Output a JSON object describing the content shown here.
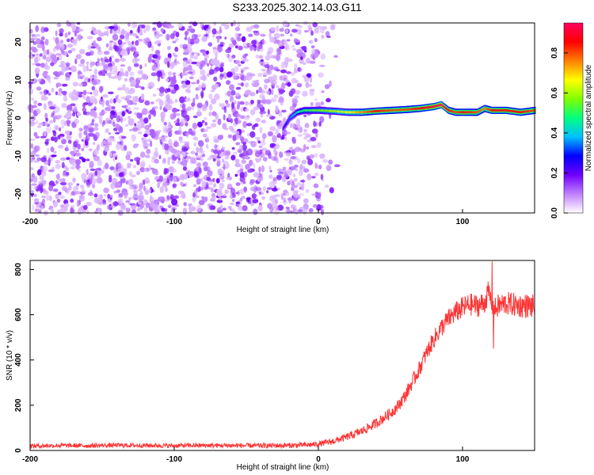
{
  "title": "S233.2025.302.14.03.G11",
  "chart_data": [
    {
      "type": "heatmap",
      "name": "spectrogram",
      "xlabel": "Height of straight line (km)",
      "ylabel": "Frequency (Hz)",
      "xlim": [
        -200,
        150
      ],
      "ylim": [
        -25,
        25
      ],
      "xticks": [
        "-200",
        "-100",
        "0",
        "100"
      ],
      "xtick_values": [
        -200,
        -100,
        0,
        100
      ],
      "yticks": [
        "-20",
        "-10",
        "0",
        "10",
        "20"
      ],
      "ytick_values": [
        -20,
        -10,
        0,
        10,
        20
      ],
      "colorbar": {
        "label": "Normalized spectral amplitude",
        "range": [
          0,
          0.95
        ],
        "ticks": [
          "0.0",
          "0.2",
          "0.4",
          "0.6",
          "0.8"
        ],
        "tick_values": [
          0,
          0.2,
          0.4,
          0.6,
          0.8
        ],
        "colors": [
          "#ffffff",
          "#c080ff",
          "#7000ff",
          "#0000ff",
          "#00c0ff",
          "#00ff80",
          "#80ff00",
          "#ffff00",
          "#ff8000",
          "#ff0000",
          "#ff0060"
        ]
      },
      "noise_region_x": [
        -200,
        -15
      ],
      "noise_amplitude": [
        0.05,
        0.2
      ],
      "signal_track": {
        "x": [
          -25,
          -20,
          -15,
          -10,
          0,
          10,
          20,
          30,
          40,
          50,
          60,
          70,
          80,
          85,
          90,
          95,
          100,
          110,
          115,
          120,
          130,
          140,
          150
        ],
        "frequency_hz": [
          -3,
          0,
          1.5,
          2,
          2,
          1.8,
          1.5,
          1.5,
          1.8,
          2,
          2.2,
          2.5,
          3,
          3.5,
          2,
          1.5,
          1.5,
          1.5,
          2.5,
          2,
          2,
          1.5,
          2
        ],
        "amplitude": [
          0.25,
          0.35,
          0.45,
          0.5,
          0.55,
          0.6,
          0.65,
          0.75,
          0.85,
          0.8,
          0.8,
          0.85,
          0.9,
          0.95,
          0.85,
          0.8,
          0.85,
          0.8,
          0.75,
          0.85,
          0.85,
          0.85,
          0.8
        ]
      }
    },
    {
      "type": "line",
      "name": "snr",
      "xlabel": "Height of straight line (km)",
      "ylabel": "SNR (10 * v/v)",
      "xlim": [
        -200,
        150
      ],
      "ylim": [
        0,
        840
      ],
      "xticks": [
        "-200",
        "-100",
        "0",
        "100"
      ],
      "xtick_values": [
        -200,
        -100,
        0,
        100
      ],
      "yticks": [
        "0",
        "200",
        "400",
        "600",
        "800"
      ],
      "ytick_values": [
        0,
        200,
        400,
        600,
        800
      ],
      "color": "#ff0000",
      "x": [
        -200,
        -180,
        -160,
        -140,
        -120,
        -100,
        -80,
        -60,
        -40,
        -20,
        -10,
        0,
        10,
        20,
        30,
        40,
        50,
        55,
        60,
        65,
        70,
        75,
        80,
        85,
        90,
        95,
        100,
        105,
        110,
        115,
        118,
        120,
        122,
        125,
        130,
        135,
        140,
        145,
        150
      ],
      "y": [
        20,
        22,
        21,
        23,
        22,
        21,
        22,
        22,
        21,
        22,
        24,
        28,
        40,
        60,
        85,
        120,
        165,
        195,
        240,
        300,
        360,
        430,
        490,
        540,
        580,
        610,
        630,
        645,
        640,
        650,
        700,
        660,
        620,
        640,
        650,
        645,
        640,
        640,
        635
      ],
      "noise_band": {
        "x": [
          -200,
          -100,
          0,
          50,
          80,
          100,
          150
        ],
        "band": [
          10,
          10,
          12,
          25,
          40,
          50,
          55
        ]
      },
      "spikes": [
        {
          "x": 120.5,
          "y": 835
        },
        {
          "x": 121.5,
          "y": 450
        }
      ]
    }
  ]
}
